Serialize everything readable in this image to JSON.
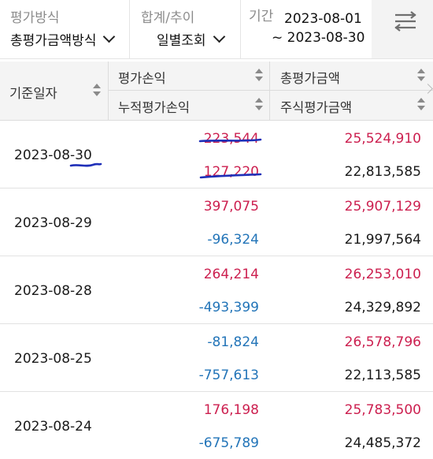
{
  "filters": {
    "method": {
      "label": "평가방식",
      "value": "총평가금액방식"
    },
    "sum_trend": {
      "label": "합계/추이",
      "value": "일별조회"
    },
    "period": {
      "label": "기간",
      "from": "2023-08-01",
      "to": "~ 2023-08-30"
    }
  },
  "table": {
    "headers": {
      "date": "기준일자",
      "eval_pnl": "평가손익",
      "cum_eval_pnl": "누적평가손익",
      "total_eval": "총평가금액",
      "stock_eval": "주식평가금액"
    },
    "rows": [
      {
        "date": "2023-08-30",
        "eval_pnl": "223,544",
        "cum_eval_pnl": "127,220",
        "total_eval": "25,524,910",
        "stock_eval": "22,813,585"
      },
      {
        "date": "2023-08-29",
        "eval_pnl": "397,075",
        "cum_eval_pnl": "-96,324",
        "total_eval": "25,907,129",
        "stock_eval": "21,997,564"
      },
      {
        "date": "2023-08-28",
        "eval_pnl": "264,214",
        "cum_eval_pnl": "-493,399",
        "total_eval": "26,253,010",
        "stock_eval": "24,329,892"
      },
      {
        "date": "2023-08-25",
        "eval_pnl": "-81,824",
        "cum_eval_pnl": "-757,613",
        "total_eval": "26,578,796",
        "stock_eval": "22,113,585"
      },
      {
        "date": "2023-08-24",
        "eval_pnl": "176,198",
        "cum_eval_pnl": "-675,789",
        "total_eval": "25,783,500",
        "stock_eval": "24,485,372"
      }
    ]
  },
  "colors": {
    "positive": "#cc1f4f",
    "negative": "#2274b8",
    "annotation": "#1f2fb8"
  }
}
